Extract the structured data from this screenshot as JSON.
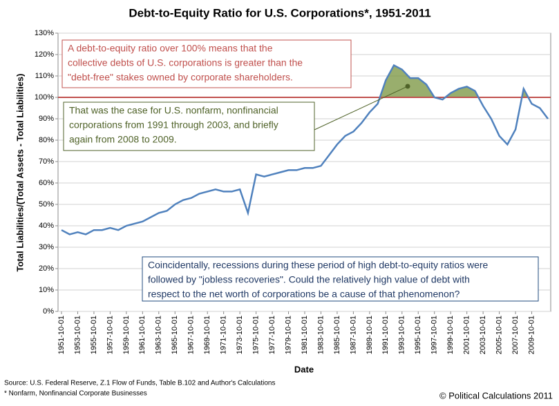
{
  "chart_data": {
    "type": "line",
    "title": "Debt-to-Equity Ratio for U.S. Corporations*, 1951-2011",
    "x_label": "Date",
    "y_label": "Total Liabilities/(Total Assets - Total Liabilities)",
    "categories": [
      "1951-10-01",
      null,
      "1953-10-01",
      null,
      "1955-10-01",
      null,
      "1957-10-01",
      null,
      "1959-10-01",
      null,
      "1961-10-01",
      null,
      "1963-10-01",
      null,
      "1965-10-01",
      null,
      "1967-10-01",
      null,
      "1969-10-01",
      null,
      "1971-10-01",
      null,
      "1973-10-01",
      null,
      "1975-10-01",
      null,
      "1977-10-01",
      null,
      "1979-10-01",
      null,
      "1981-10-01",
      null,
      "1983-10-01",
      null,
      "1985-10-01",
      null,
      "1987-10-01",
      null,
      "1989-10-01",
      null,
      "1991-10-01",
      null,
      "1993-10-01",
      null,
      "1995-10-01",
      null,
      "1997-10-01",
      null,
      "1999-10-01",
      null,
      "2001-10-01",
      null,
      "2003-10-01",
      null,
      "2005-10-01",
      null,
      "2007-10-01",
      null,
      "2009-10-01",
      null,
      null
    ],
    "series": [
      {
        "name": "Debt-to-Equity Ratio",
        "color": "#4f81bd",
        "values": [
          38,
          36,
          37,
          36,
          38,
          38,
          39,
          38,
          40,
          41,
          42,
          44,
          46,
          47,
          50,
          52,
          53,
          55,
          56,
          57,
          56,
          56,
          57,
          46,
          64,
          63,
          64,
          65,
          66,
          66,
          67,
          67,
          68,
          73,
          78,
          82,
          84,
          88,
          93,
          97,
          108,
          115,
          113,
          109,
          109,
          106,
          100,
          99,
          102,
          104,
          105,
          103,
          96,
          90,
          82,
          78,
          85,
          104,
          97,
          95,
          90
        ]
      }
    ],
    "reference_line": {
      "value": 100,
      "color": "#c0504d",
      "fill": "#77933c"
    },
    "ylim": [
      0,
      130
    ],
    "yticks": [
      {
        "value": 0,
        "label": "0%"
      },
      {
        "value": 10,
        "label": "10%"
      },
      {
        "value": 20,
        "label": "20%"
      },
      {
        "value": 30,
        "label": "30%"
      },
      {
        "value": 40,
        "label": "40%"
      },
      {
        "value": 50,
        "label": "50%"
      },
      {
        "value": 60,
        "label": "60%"
      },
      {
        "value": 70,
        "label": "70%"
      },
      {
        "value": 80,
        "label": "80%"
      },
      {
        "value": 90,
        "label": "90%"
      },
      {
        "value": 100,
        "label": "100%"
      },
      {
        "value": 110,
        "label": "110%"
      },
      {
        "value": 120,
        "label": "120%"
      },
      {
        "value": 130,
        "label": "130%"
      }
    ],
    "grid": true,
    "annotations": [
      {
        "lines": [
          "A debt-to-equity ratio over 100% means that the",
          "collective debts of U.S. corporations is greater than the",
          "\"debt-free\" stakes owned by corporate shareholders."
        ]
      },
      {
        "lines": [
          "That was the case for U.S. nonfarm, nonfinancial",
          "corporations from 1991 through 2003, and briefly",
          "again from 2008 to 2009."
        ]
      },
      {
        "lines": [
          "Coincidentally, recessions during these period of high debt-to-equity ratios were",
          "followed by \"jobless recoveries\".  Could the relatively high value of debt with",
          "respect to the net worth of corporations be a cause of that phenomenon?"
        ]
      }
    ],
    "source": [
      "Source: U.S. Federal Reserve, Z.1 Flow of Funds, Table B.102 and Author's Calculations",
      "* Nonfarm, Nonfinancial Corporate Businesses"
    ],
    "credit": "© Political Calculations 2011"
  }
}
